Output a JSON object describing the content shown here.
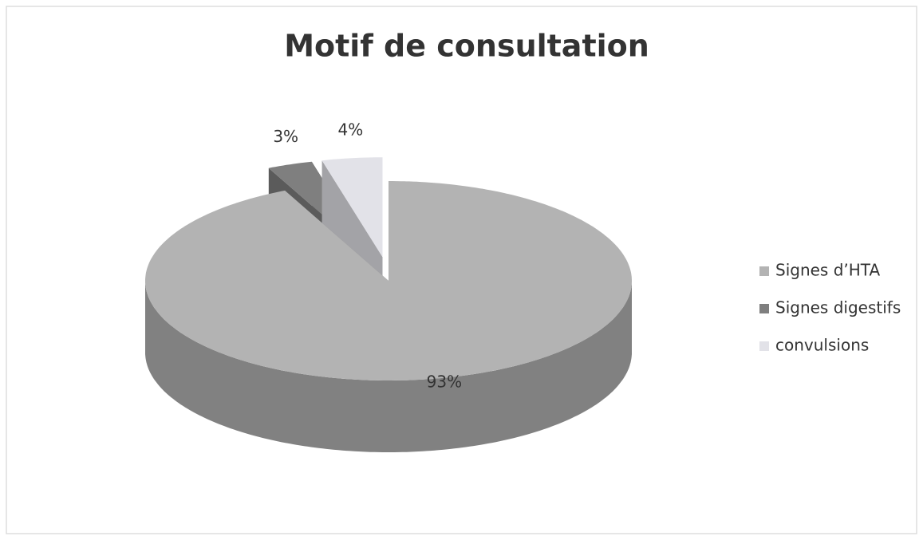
{
  "chart_data": {
    "type": "pie",
    "title": "Motif de consultation",
    "categories": [
      "Signes d’HTA",
      "Signes digestifs",
      "convulsions"
    ],
    "values": [
      93,
      3,
      4
    ],
    "value_labels": [
      "93%",
      "3%",
      "4%"
    ],
    "colors": [
      "#b3b3b3",
      "#7f7f7f",
      "#e2e2e8"
    ],
    "legend": "right"
  }
}
